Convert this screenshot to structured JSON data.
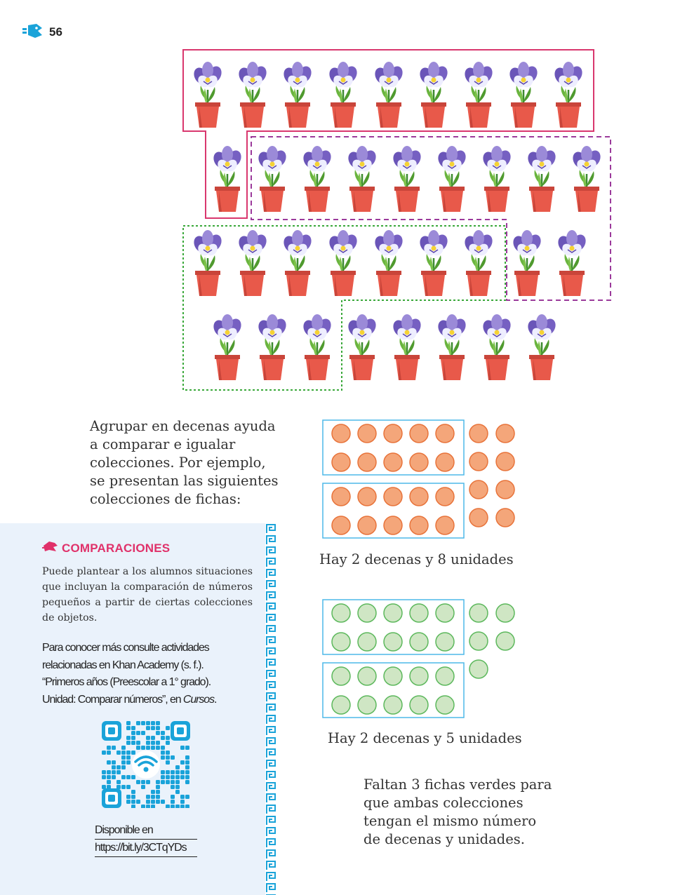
{
  "page": {
    "number": "56"
  },
  "intro": {
    "lines": [
      "Agrupar en decenas ayuda",
      "a comparar e igualar",
      "colecciones. Por ejemplo,",
      "se presentan las siguientes",
      "colecciones de fichas:"
    ]
  },
  "collections": {
    "orange": {
      "caption": "Hay 2 decenas y 8 unidades",
      "tens": 2,
      "units": 8,
      "fill": "#f4a67a",
      "stroke": "#e8733a"
    },
    "green": {
      "caption": "Hay 2 decenas y 5 unidades",
      "tens": 2,
      "units": 5,
      "fill": "#cfe6c4",
      "stroke": "#5cb85c"
    },
    "frame_color": "#4db8e8"
  },
  "conclusion": {
    "lines": [
      "Faltan 3 fichas verdes para",
      "que ambas colecciones",
      "tengan el mismo número",
      "de decenas y unidades."
    ]
  },
  "sidebar": {
    "title": "COMPARACIONES",
    "text": "Puede plantear a los alumnos situaciones que incluyan la comparación de números pequeños a partir de ciertas colecciones de objetos.",
    "ref_lines": [
      "Para conocer más consulte actividades",
      "relacionadas en Khan Academy (s. f.).",
      "“Primeros años (Preescolar a 1° grado).",
      "Unidad: Comparar números”, en ",
      "Cursos",
      "."
    ],
    "available_label": "Disponible en",
    "url": "https://bit.ly/3CTqYDs"
  },
  "flowers": {
    "total": 35
  },
  "colors": {
    "accent_pink": "#e0316a",
    "group_pink": "#d9376e",
    "group_purple": "#9b3a9b",
    "group_green": "#3aa83a",
    "qr_blue": "#1aa3d9",
    "sidebar_bg": "#eaf2fb"
  },
  "icons": [
    "hand-logo-icon",
    "plant-icon",
    "qr-code-icon",
    "wifi-icon"
  ]
}
